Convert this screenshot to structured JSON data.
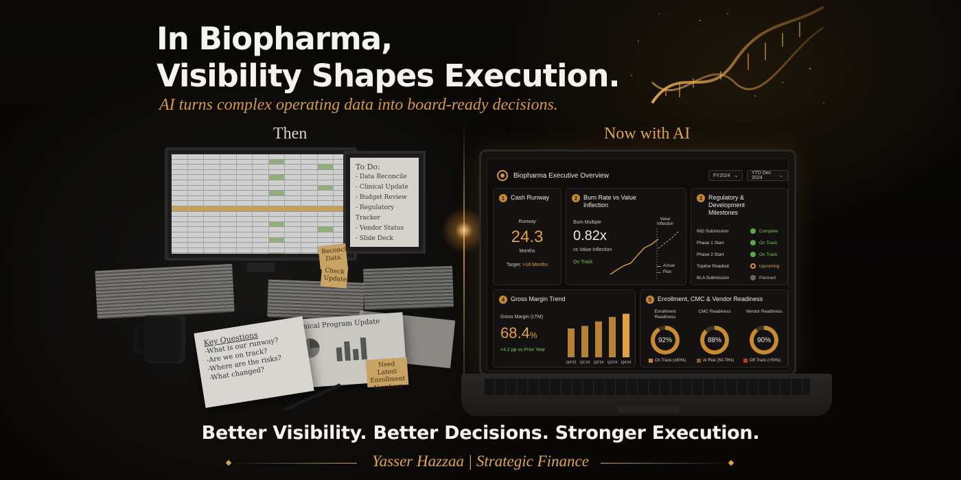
{
  "headline": {
    "line1": "In Biopharma,",
    "line2": "Visibility Shapes Execution."
  },
  "subhead": "AI turns complex operating data into board-ready decisions.",
  "labels": {
    "then": "Then",
    "now": "Now with AI"
  },
  "then_scene": {
    "todo": {
      "title": "To Do:",
      "items": [
        "- Data Reconcile",
        "- Clinical Update",
        "- Budget Review",
        "- Regulatory Tracker",
        "- Vendor Status",
        "- Slide Deck"
      ]
    },
    "notes": {
      "reconcile": "Reconcile Data",
      "check": "Check Updates",
      "enrollment": "Need Latest Enrollment Numbers"
    },
    "notebook": {
      "title": "Key Questions",
      "lines": [
        "-What is our runway?",
        "-Are we on track?",
        "-Where are the risks?",
        "-What changed?"
      ]
    },
    "report_title": "Clinical Program Update"
  },
  "dashboard": {
    "title": "Biopharma Executive Overview",
    "filters": [
      "FY2024",
      "YTD Dec 2024"
    ],
    "cash": {
      "num": "1",
      "title": "Cash Runway",
      "label": "Runway",
      "value": "24.3",
      "unit": "Months",
      "target_label": "Target:",
      "target_value": ">18 Months"
    },
    "burn": {
      "num": "2",
      "title": "Burn Rate vs Value Inflection",
      "label": "Burn Multiple",
      "value": "0.82x",
      "sub": "vs Value Inflection",
      "status": "On Track",
      "marker": "Value Inflection",
      "legend": [
        "Actual",
        "Plan"
      ]
    },
    "milestones": {
      "num": "3",
      "title": "Regulatory & Development Milestones",
      "rows": [
        {
          "label": "IND Submission",
          "status": "Complete",
          "state": "ok"
        },
        {
          "label": "Phase 1 Start",
          "status": "On Track",
          "state": "ok"
        },
        {
          "label": "Phase 2 Start",
          "status": "On Track",
          "state": "ok"
        },
        {
          "label": "Topline Readout",
          "status": "Upcoming",
          "state": "up"
        },
        {
          "label": "BLA Submission",
          "status": "Planned",
          "state": "pl"
        }
      ]
    },
    "margin": {
      "num": "4",
      "title": "Gross Margin Trend",
      "label": "Gross Margin (LTM)",
      "value": "68.4",
      "unit": "%",
      "delta": "+4.2 pp vs Prior Year"
    },
    "readiness": {
      "num": "5",
      "title": "Enrollment, CMC & Vendor Readiness",
      "items": [
        {
          "label": "Enrollment Readiness",
          "value": "92%",
          "pct": 92
        },
        {
          "label": "CMC Readiness",
          "value": "88%",
          "pct": 88
        },
        {
          "label": "Vendor Readiness",
          "value": "90%",
          "pct": 90
        }
      ],
      "legend": [
        "On Track (≥80%)",
        "At Risk (50-79%)",
        "Off Track (<50%)"
      ]
    }
  },
  "chart_data": [
    {
      "type": "bar",
      "title": "Gross Margin Trend",
      "categories": [
        "Q4'23",
        "Q1'24",
        "Q2'24",
        "Q3'24",
        "Q4'24"
      ],
      "values": [
        45,
        49,
        56,
        63,
        68
      ],
      "ylim": [
        0,
        75
      ]
    },
    {
      "type": "line",
      "title": "Burn Rate vs Value Inflection",
      "series": [
        {
          "name": "Actual",
          "values": [
            5,
            12,
            18,
            22,
            34,
            45,
            50,
            58
          ]
        },
        {
          "name": "Plan",
          "values": [
            44,
            52,
            60,
            70
          ]
        }
      ]
    }
  ],
  "colors": {
    "accent": "#e4a13e",
    "good": "#7ec85a",
    "risk": "#c98a2a",
    "off": "#b83a2a"
  },
  "tagline": "Better Visibility. Better Decisions. Stronger Execution.",
  "signature": "Yasser Hazzaa | Strategic Finance"
}
